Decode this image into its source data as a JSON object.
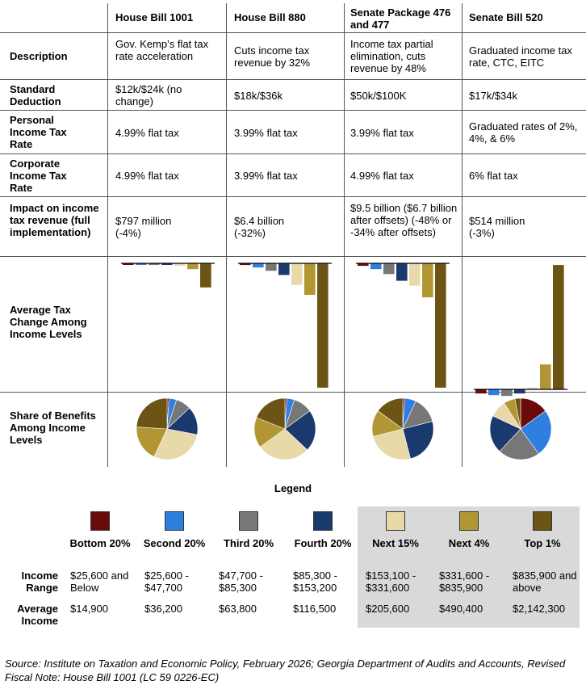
{
  "columns": [
    "House Bill 1001",
    "House Bill 880",
    "Senate Package 476 and 477",
    "Senate Bill 520"
  ],
  "rows": [
    {
      "label": "Description",
      "cells": [
        "Gov. Kemp’s flat tax rate acceleration",
        "Cuts income tax revenue by 32%",
        "Income tax partial elimination, cuts revenue by 48%",
        "Graduated income tax rate, CTC, EITC"
      ]
    },
    {
      "label": "Standard Deduction",
      "cells": [
        "$12k/$24k (no change)",
        "$18k/$36k",
        "$50k/$100K",
        "$17k/$34k"
      ]
    },
    {
      "label": "Personal Income Tax Rate",
      "cells": [
        "4.99% flat tax",
        "3.99% flat tax",
        "3.99% flat tax",
        "Graduated rates of 2%, 4%, & 6%"
      ]
    },
    {
      "label": "Corporate Income Tax Rate",
      "cells": [
        "4.99% flat tax",
        "3.99% flat tax",
        "4.99% flat tax",
        "6% flat tax"
      ]
    },
    {
      "label": "Impact on income tax revenue (full implementation)",
      "cells": [
        "$797 million (-4%)",
        "$6.4 billion (-32%)",
        "$9.5 billion ($6.7 billion after offsets) (-48% or -34% after offsets)",
        "$514 million (-3%)"
      ]
    }
  ],
  "chart_rows": {
    "bar_label": "Average Tax Change Among Income Levels",
    "pie_label": "Share of Benefits Among Income Levels"
  },
  "colors": [
    "#6b0a0a",
    "#2f7fe0",
    "#777777",
    "#1a3a6e",
    "#e8d9a8",
    "#b29633",
    "#6b5414"
  ],
  "chart_data": [
    {
      "type": "bar",
      "title": "House Bill 1001 - Average Tax Change",
      "categories": [
        "Bottom 20%",
        "Second 20%",
        "Third 20%",
        "Fourth 20%",
        "Next 15%",
        "Next 4%",
        "Top 1%"
      ],
      "values": [
        -20,
        -40,
        -60,
        -80,
        -150,
        -350,
        -1450
      ],
      "ylim": [
        -7600,
        7600
      ]
    },
    {
      "type": "bar",
      "title": "House Bill 880 - Average Tax Change",
      "categories": [
        "Bottom 20%",
        "Second 20%",
        "Third 20%",
        "Fourth 20%",
        "Next 15%",
        "Next 4%",
        "Top 1%"
      ],
      "values": [
        -100,
        -250,
        -450,
        -700,
        -1300,
        -1900,
        -7500
      ],
      "ylim": [
        -7600,
        7600
      ]
    },
    {
      "type": "bar",
      "title": "Senate Package 476 and 477 - Average Tax Change",
      "categories": [
        "Bottom 20%",
        "Second 20%",
        "Third 20%",
        "Fourth 20%",
        "Next 15%",
        "Next 4%",
        "Top 1%"
      ],
      "values": [
        -150,
        -350,
        -650,
        -1050,
        -1350,
        -2050,
        -7500
      ],
      "ylim": [
        -7600,
        7600
      ]
    },
    {
      "type": "bar",
      "title": "Senate Bill 520 - Average Tax Change",
      "categories": [
        "Bottom 20%",
        "Second 20%",
        "Third 20%",
        "Fourth 20%",
        "Next 15%",
        "Next 4%",
        "Top 1%"
      ],
      "values": [
        -250,
        -350,
        -400,
        -250,
        10,
        1500,
        7500
      ],
      "ylim": [
        -7600,
        7600
      ]
    },
    {
      "type": "pie",
      "title": "House Bill 1001 - Share of Benefits",
      "categories": [
        "Bottom 20%",
        "Second 20%",
        "Third 20%",
        "Fourth 20%",
        "Next 15%",
        "Next 4%",
        "Top 1%"
      ],
      "values": [
        1,
        4,
        8,
        15,
        29,
        19,
        24
      ]
    },
    {
      "type": "pie",
      "title": "House Bill 880 - Share of Benefits",
      "categories": [
        "Bottom 20%",
        "Second 20%",
        "Third 20%",
        "Fourth 20%",
        "Next 15%",
        "Next 4%",
        "Top 1%"
      ],
      "values": [
        1,
        4,
        10,
        22,
        28,
        16,
        19
      ]
    },
    {
      "type": "pie",
      "title": "Senate Package 476 and 477 - Share of Benefits",
      "categories": [
        "Bottom 20%",
        "Second 20%",
        "Third 20%",
        "Fourth 20%",
        "Next 15%",
        "Next 4%",
        "Top 1%"
      ],
      "values": [
        1,
        6,
        14,
        25,
        25,
        14,
        15
      ]
    },
    {
      "type": "pie",
      "title": "Senate Bill 520 - Share of Benefits",
      "categories": [
        "Bottom 20%",
        "Second 20%",
        "Third 20%",
        "Fourth 20%",
        "Next 15%",
        "Next 4%",
        "Top 1%"
      ],
      "values": [
        15,
        25,
        22,
        20,
        9,
        6,
        3
      ]
    }
  ],
  "legend": {
    "title": "Legend",
    "range_label": "Income Range",
    "avg_label": "Average Income",
    "groups": [
      {
        "name": "Bottom 20%",
        "range": "$25,600 and Below",
        "avg": "$14,900"
      },
      {
        "name": "Second 20%",
        "range": "$25,600 - $47,700",
        "avg": "$36,200"
      },
      {
        "name": "Third 20%",
        "range": "$47,700 - $85,300",
        "avg": "$63,800"
      },
      {
        "name": "Fourth 20%",
        "range": "$85,300 - $153,200",
        "avg": "$116,500"
      },
      {
        "name": "Next 15%",
        "range": "$153,100 - $331,600",
        "avg": "$205,600"
      },
      {
        "name": "Next 4%",
        "range": "$331,600 - $835,900",
        "avg": "$490,400"
      },
      {
        "name": "Top 1%",
        "range": "$835,900 and above",
        "avg": "$2,142,300"
      }
    ]
  },
  "source": "Source: Institute on Taxation and Economic Policy, February 2026; Georgia Department of Audits and Accounts, Revised Fiscal Note: House Bill 1001 (LC 59 0226-EC)"
}
